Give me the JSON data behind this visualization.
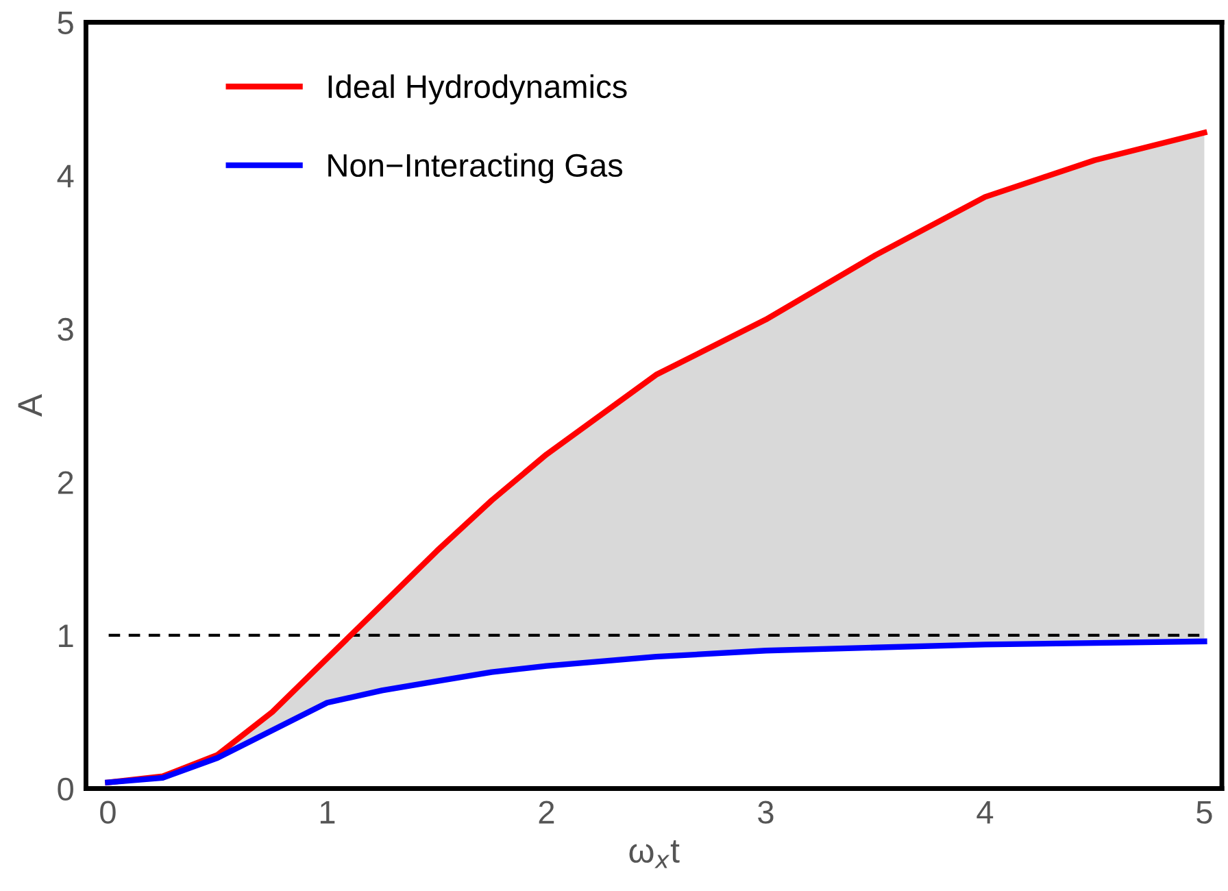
{
  "chart_data": {
    "type": "line",
    "xlabel": "ω$_{x}$t",
    "ylabel": "A",
    "xlim": [
      -0.1,
      5.08
    ],
    "ylim": [
      0,
      5
    ],
    "xticks": [
      0,
      1,
      2,
      3,
      4,
      5
    ],
    "yticks": [
      0,
      1,
      2,
      3,
      4,
      5
    ],
    "x": [
      0,
      0.25,
      0.5,
      0.75,
      1,
      1.25,
      1.5,
      1.75,
      2,
      2.5,
      3,
      3.5,
      4,
      4.5,
      5
    ],
    "series": [
      {
        "name": "Ideal Hydrodynamics",
        "color": "#ff0000",
        "values": [
          0.04,
          0.08,
          0.22,
          0.5,
          0.85,
          1.2,
          1.55,
          1.88,
          2.18,
          2.7,
          3.06,
          3.48,
          3.86,
          4.1,
          4.28
        ],
        "lower": [
          0.04,
          0.07,
          0.2,
          0.38,
          0.56,
          0.64,
          0.7,
          0.76,
          0.8,
          0.86,
          0.9,
          0.92,
          0.94,
          0.95,
          0.96
        ],
        "upper": [
          0.04,
          0.08,
          0.22,
          0.5,
          0.85,
          1.2,
          1.55,
          1.88,
          2.18,
          2.7,
          3.06,
          3.48,
          3.86,
          4.1,
          4.28
        ]
      },
      {
        "name": "Non−Interacting Gas",
        "color": "#0000ff",
        "values": [
          0.04,
          0.07,
          0.2,
          0.38,
          0.56,
          0.64,
          0.7,
          0.76,
          0.8,
          0.86,
          0.9,
          0.92,
          0.94,
          0.95,
          0.96
        ]
      }
    ],
    "ref_lines": [
      {
        "axis": "y",
        "value": 1,
        "color": "#000000",
        "line_style": "dashed"
      }
    ],
    "legend": "top left",
    "grid": false
  }
}
